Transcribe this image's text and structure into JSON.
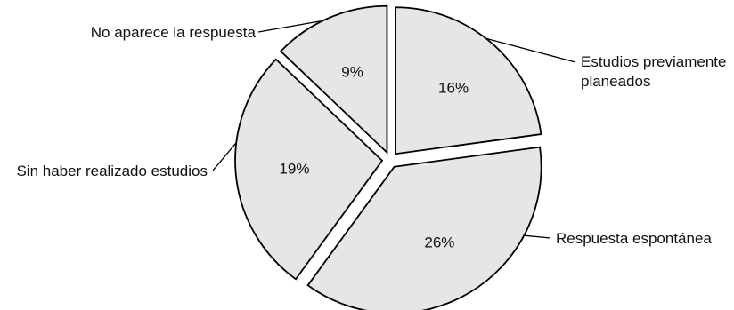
{
  "chart_data": {
    "type": "pie",
    "title": "",
    "slices": [
      {
        "label": "Estudios previamente planeados",
        "label_lines": [
          "Estudios previamente",
          "planeados"
        ],
        "value": 16,
        "display": "16%"
      },
      {
        "label": "Respuesta espontánea",
        "label_lines": [
          "Respuesta espontánea"
        ],
        "value": 26,
        "display": "26%"
      },
      {
        "label": "Sin haber realizado estudios",
        "label_lines": [
          "Sin haber realizado estudios"
        ],
        "value": 19,
        "display": "19%"
      },
      {
        "label": "No aparece la respuesta",
        "label_lines": [
          "No aparece la respuesta"
        ],
        "value": 9,
        "display": "9%"
      }
    ],
    "slice_color": "#e6e6e6",
    "outline_color": "#000000",
    "exploded": true,
    "legend": "none"
  }
}
